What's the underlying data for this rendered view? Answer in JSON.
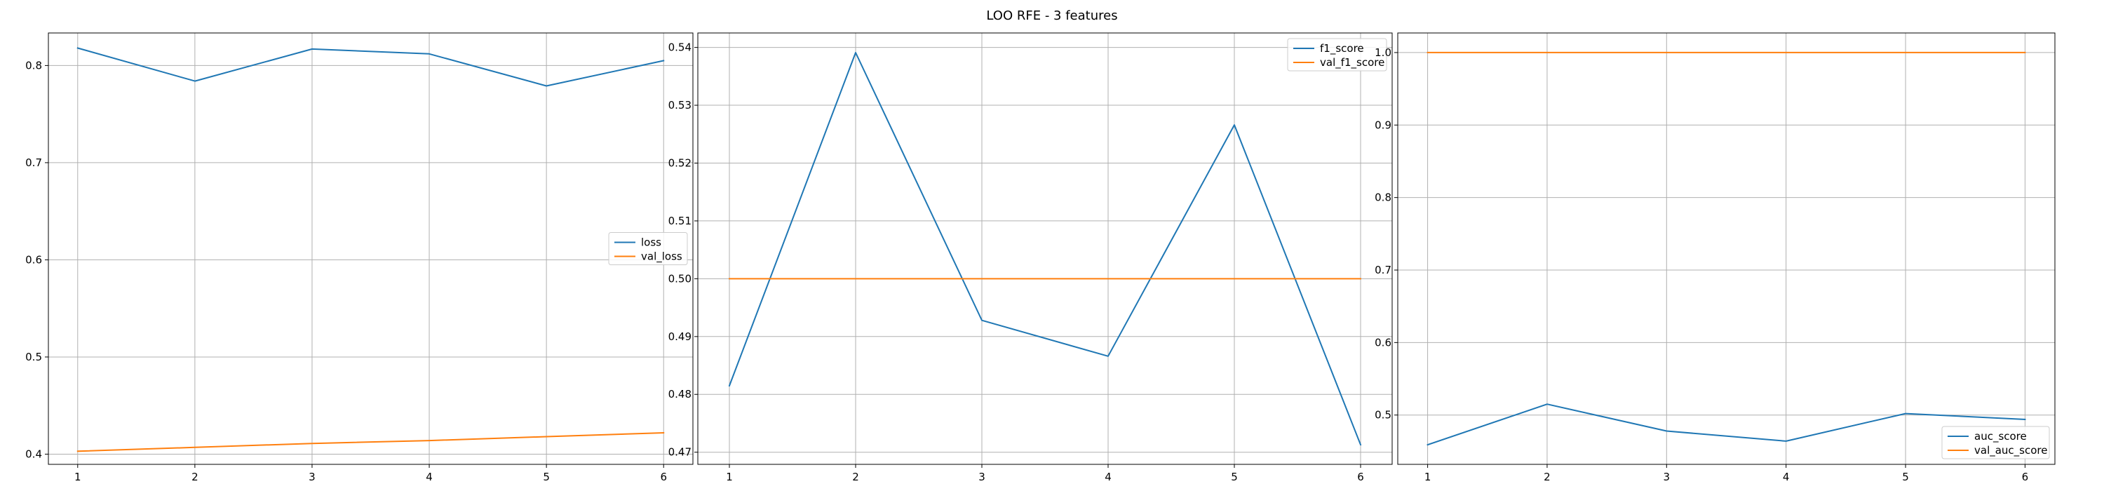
{
  "figure": {
    "title": "LOO RFE - 3 features"
  },
  "chart_data": [
    {
      "type": "line",
      "x": [
        1,
        2,
        3,
        4,
        5,
        6
      ],
      "xticks": [
        1,
        2,
        3,
        4,
        5,
        6
      ],
      "xlim": [
        0.75,
        6.25
      ],
      "ylim": [
        0.3895,
        0.8335
      ],
      "yticks": [
        0.4,
        0.5,
        0.6,
        0.7,
        0.8
      ],
      "ytick_labels": [
        "0.4",
        "0.5",
        "0.6",
        "0.7",
        "0.8"
      ],
      "grid": true,
      "legend": "center-right",
      "series": [
        {
          "name": "loss",
          "color": "#1f77b4",
          "values": [
            0.818,
            0.784,
            0.817,
            0.812,
            0.779,
            0.805
          ]
        },
        {
          "name": "val_loss",
          "color": "#ff7f0e",
          "values": [
            0.403,
            0.407,
            0.411,
            0.414,
            0.418,
            0.422
          ]
        }
      ]
    },
    {
      "type": "line",
      "x": [
        1,
        2,
        3,
        4,
        5,
        6
      ],
      "xticks": [
        1,
        2,
        3,
        4,
        5,
        6
      ],
      "xlim": [
        0.75,
        6.25
      ],
      "ylim": [
        0.4679,
        0.5425
      ],
      "yticks": [
        0.47,
        0.48,
        0.49,
        0.5,
        0.51,
        0.52,
        0.53,
        0.54
      ],
      "ytick_labels": [
        "0.47",
        "0.48",
        "0.49",
        "0.50",
        "0.51",
        "0.52",
        "0.53",
        "0.54"
      ],
      "grid": true,
      "legend": "top-right",
      "series": [
        {
          "name": "f1_score",
          "color": "#1f77b4",
          "values": [
            0.4815,
            0.5391,
            0.4928,
            0.4866,
            0.5266,
            0.4713
          ]
        },
        {
          "name": "val_f1_score",
          "color": "#ff7f0e",
          "values": [
            0.5,
            0.5,
            0.5,
            0.5,
            0.5,
            0.5
          ]
        }
      ]
    },
    {
      "type": "line",
      "x": [
        1,
        2,
        3,
        4,
        5,
        6
      ],
      "xticks": [
        1,
        2,
        3,
        4,
        5,
        6
      ],
      "xlim": [
        0.75,
        6.25
      ],
      "ylim": [
        0.432,
        1.027
      ],
      "yticks": [
        0.5,
        0.6,
        0.7,
        0.8,
        0.9,
        1.0
      ],
      "ytick_labels": [
        "0.5",
        "0.6",
        "0.7",
        "0.8",
        "0.9",
        "1.0"
      ],
      "grid": true,
      "legend": "bottom-right",
      "series": [
        {
          "name": "auc_score",
          "color": "#1f77b4",
          "values": [
            0.459,
            0.515,
            0.478,
            0.464,
            0.502,
            0.494
          ]
        },
        {
          "name": "val_auc_score",
          "color": "#ff7f0e",
          "values": [
            1.0,
            1.0,
            1.0,
            1.0,
            1.0,
            1.0
          ]
        }
      ]
    }
  ]
}
